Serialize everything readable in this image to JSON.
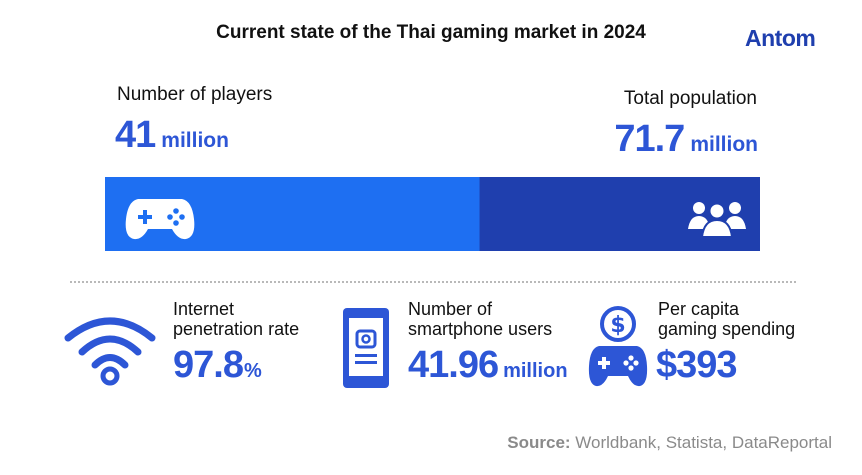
{
  "header": {
    "title": "Current state of the Thai gaming market in 2024",
    "logo_text": "Antom"
  },
  "players": {
    "label": "Number of players",
    "value": "41",
    "unit": "million"
  },
  "population": {
    "label": "Total population",
    "value": "71.7",
    "unit": "million"
  },
  "stats": {
    "internet": {
      "label_line1": "Internet",
      "label_line2": "penetration rate",
      "value": "97.8",
      "unit": "%"
    },
    "smartphone": {
      "label_line1": "Number of",
      "label_line2": "smartphone users",
      "value": "41.96",
      "unit": "million"
    },
    "spending": {
      "label_line1": "Per capita",
      "label_line2": "gaming spending",
      "value": "$393"
    }
  },
  "source": {
    "label": "Source:",
    "text": "Worldbank, Statista, DataReportal"
  },
  "icons": {
    "players_segment": "gamepad-icon",
    "population_segment": "people-group-icon",
    "internet": "wifi-icon",
    "smartphone": "smartphone-icon",
    "spending": "dollar-gamepad-icon"
  },
  "colors": {
    "accent": "#2d56d6",
    "players_segment": "#1e6ff2",
    "population_segment": "#1f3fae",
    "logo": "#1f3fae"
  },
  "chart_data": {
    "type": "bar",
    "stacked_single_bar": true,
    "series": [
      {
        "name": "Number of players",
        "values": [
          41
        ]
      },
      {
        "name": "Total population",
        "values": [
          71.7
        ]
      }
    ],
    "unit": "million",
    "xlim": [
      0,
      71.7
    ]
  }
}
